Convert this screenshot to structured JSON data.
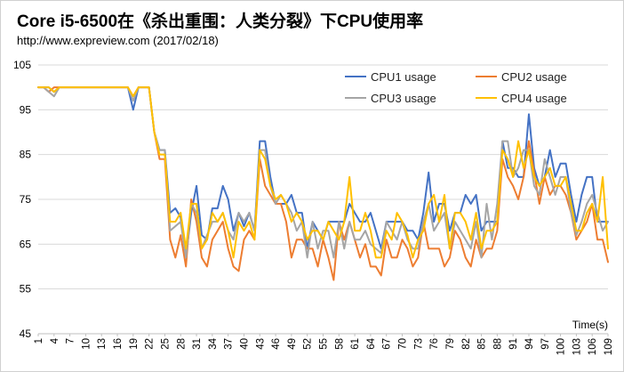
{
  "header": {
    "title": "Core i5-6500在《杀出重围：人类分裂》下CPU使用率",
    "source": "http://www.expreview.com (2017/02/18)"
  },
  "chart_data": {
    "type": "line",
    "title": "Core i5-6500在《杀出重围：人类分裂》下CPU使用率",
    "subtitle": "http://www.expreview.com (2017/02/18)",
    "xlabel": "Time(s)",
    "ylabel": "",
    "ylim": [
      45,
      105
    ],
    "yticks": [
      45,
      55,
      65,
      75,
      85,
      95,
      105
    ],
    "x_start": 1,
    "x_end": 109,
    "x_ticks": [
      1,
      4,
      7,
      10,
      13,
      16,
      19,
      22,
      25,
      28,
      31,
      34,
      37,
      40,
      43,
      46,
      49,
      52,
      55,
      58,
      61,
      64,
      67,
      70,
      73,
      76,
      79,
      82,
      85,
      88,
      91,
      94,
      97,
      100,
      103,
      106,
      109
    ],
    "grid": true,
    "legend_position": "top-right",
    "series": [
      {
        "name": "CPU1 usage",
        "color": "#4472c4",
        "values": [
          100,
          100,
          100,
          99,
          100,
          100,
          100,
          100,
          100,
          100,
          100,
          100,
          100,
          100,
          100,
          100,
          100,
          100,
          95,
          100,
          100,
          100,
          90,
          86,
          86,
          72,
          73,
          71,
          62,
          72,
          78,
          67,
          66,
          73,
          73,
          78,
          75,
          68,
          72,
          69,
          72,
          68,
          88,
          88,
          80,
          74,
          74,
          74,
          76,
          72,
          72,
          64,
          70,
          68,
          66,
          70,
          70,
          70,
          70,
          74,
          72,
          70,
          70,
          72,
          68,
          64,
          70,
          70,
          70,
          70,
          68,
          68,
          66,
          72,
          81,
          70,
          74,
          74,
          68,
          72,
          72,
          76,
          74,
          76,
          68,
          70,
          70,
          70,
          88,
          82,
          82,
          80,
          80,
          94,
          82,
          78,
          80,
          86,
          80,
          83,
          83,
          76,
          70,
          76,
          80,
          80,
          70,
          70,
          70
        ]
      },
      {
        "name": "CPU2 usage",
        "color": "#ed7d31",
        "values": [
          100,
          100,
          99,
          100,
          100,
          100,
          100,
          100,
          100,
          100,
          100,
          100,
          100,
          100,
          100,
          100,
          100,
          100,
          98,
          100,
          100,
          100,
          90,
          84,
          84,
          66,
          62,
          67,
          60,
          75,
          70,
          62,
          60,
          66,
          68,
          70,
          64,
          60,
          59,
          66,
          68,
          66,
          84,
          78,
          76,
          74,
          74,
          70,
          62,
          66,
          66,
          64,
          64,
          60,
          66,
          62,
          57,
          70,
          66,
          70,
          66,
          62,
          65,
          60,
          60,
          58,
          66,
          62,
          62,
          66,
          64,
          60,
          62,
          70,
          64,
          64,
          64,
          60,
          62,
          68,
          66,
          62,
          60,
          66,
          62,
          64,
          64,
          68,
          84,
          80,
          78,
          75,
          80,
          88,
          81,
          74,
          80,
          76,
          78,
          78,
          76,
          72,
          66,
          68,
          70,
          74,
          66,
          66,
          61
        ]
      },
      {
        "name": "CPU3 usage",
        "color": "#a5a5a5",
        "values": [
          100,
          100,
          99,
          98,
          100,
          100,
          100,
          100,
          100,
          100,
          100,
          100,
          100,
          100,
          100,
          100,
          100,
          100,
          97,
          100,
          100,
          100,
          90,
          86,
          86,
          68,
          69,
          70,
          62,
          74,
          72,
          64,
          67,
          70,
          70,
          72,
          68,
          66,
          72,
          70,
          72,
          68,
          86,
          86,
          78,
          74,
          76,
          74,
          72,
          68,
          70,
          62,
          70,
          64,
          68,
          68,
          62,
          70,
          64,
          70,
          66,
          66,
          68,
          65,
          64,
          63,
          70,
          68,
          66,
          70,
          66,
          64,
          64,
          70,
          74,
          68,
          70,
          72,
          64,
          70,
          68,
          66,
          64,
          70,
          62,
          74,
          66,
          74,
          88,
          88,
          80,
          82,
          86,
          86,
          78,
          76,
          84,
          80,
          76,
          80,
          80,
          72,
          67,
          70,
          74,
          76,
          72,
          68,
          70
        ]
      },
      {
        "name": "CPU4 usage",
        "color": "#ffc000",
        "values": [
          100,
          100,
          100,
          99,
          100,
          100,
          100,
          100,
          100,
          100,
          100,
          100,
          100,
          100,
          100,
          100,
          100,
          100,
          98,
          100,
          100,
          100,
          90,
          85,
          85,
          70,
          70,
          72,
          64,
          74,
          74,
          64,
          66,
          72,
          70,
          72,
          68,
          62,
          70,
          68,
          70,
          66,
          86,
          84,
          78,
          75,
          76,
          74,
          70,
          72,
          70,
          66,
          68,
          68,
          66,
          70,
          68,
          66,
          70,
          80,
          68,
          68,
          72,
          68,
          62,
          62,
          68,
          66,
          72,
          70,
          67,
          62,
          66,
          68,
          74,
          76,
          70,
          76,
          64,
          72,
          72,
          70,
          66,
          72,
          64,
          68,
          68,
          70,
          86,
          84,
          80,
          88,
          82,
          86,
          80,
          78,
          80,
          82,
          78,
          78,
          80,
          74,
          68,
          68,
          72,
          74,
          70,
          80,
          64
        ]
      }
    ]
  }
}
